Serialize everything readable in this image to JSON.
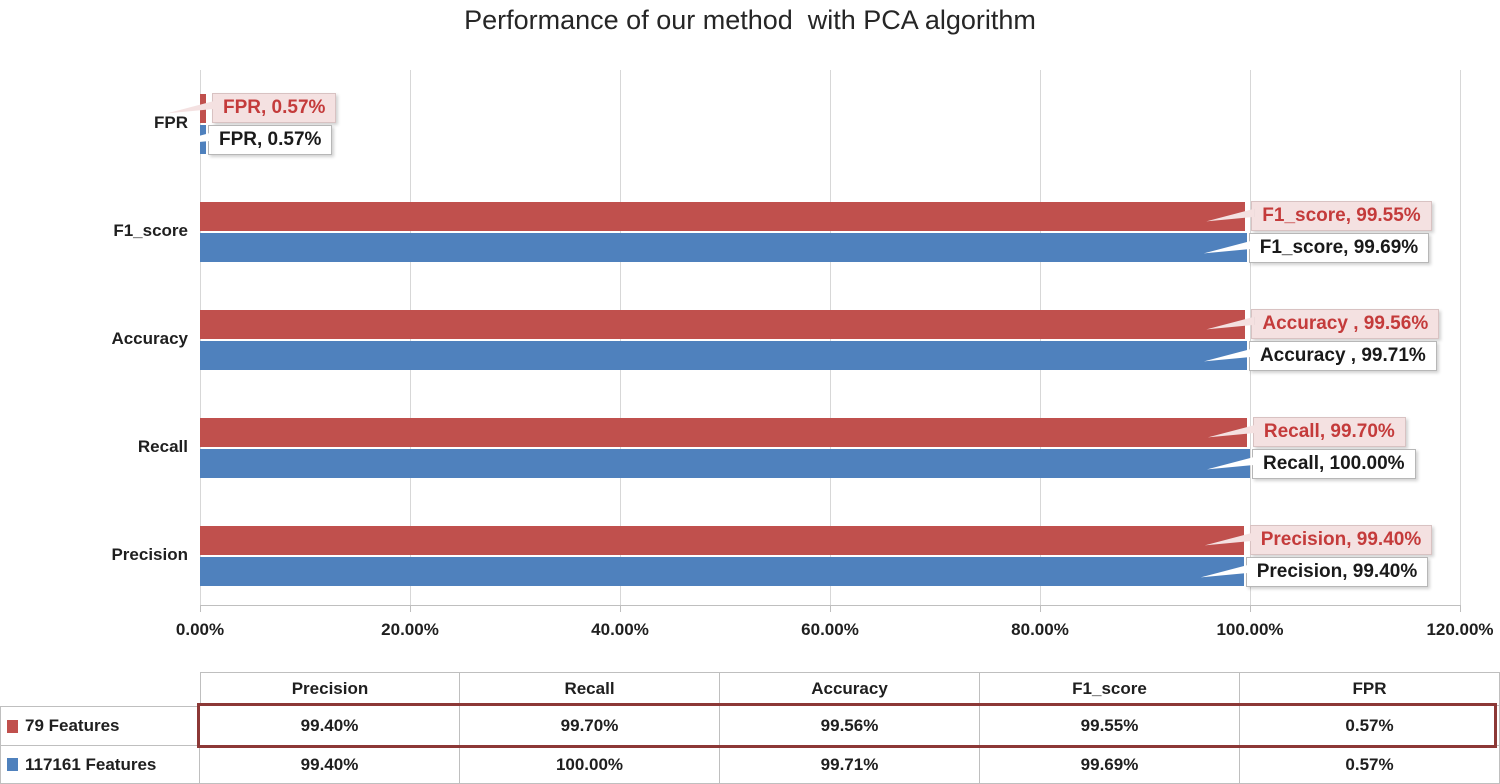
{
  "title": "Performance of our method  with PCA algorithm",
  "chart_data": {
    "type": "bar",
    "orientation": "horizontal",
    "title": "Performance of our method  with PCA algorithm",
    "categories": [
      "Precision",
      "Recall",
      "Accuracy",
      "F1_score",
      "FPR"
    ],
    "series": [
      {
        "name": "79 Features",
        "color": "#c0504d",
        "values": [
          99.4,
          99.7,
          99.56,
          99.55,
          0.57
        ],
        "labels": [
          "Precision, 99.40%",
          "Recall, 99.70%",
          "Accuracy , 99.56%",
          "F1_score, 99.55%",
          "FPR, 0.57%"
        ]
      },
      {
        "name": "117161 Features",
        "color": "#4f81bd",
        "values": [
          99.4,
          100.0,
          99.71,
          99.69,
          0.57
        ],
        "labels": [
          "Precision, 99.40%",
          "Recall, 100.00%",
          "Accuracy , 99.71%",
          "F1_score, 99.69%",
          "FPR, 0.57%"
        ]
      }
    ],
    "xlim": [
      0,
      120
    ],
    "x_ticks": [
      "0.00%",
      "20.00%",
      "40.00%",
      "60.00%",
      "80.00%",
      "100.00%",
      "120.00%"
    ],
    "grid": "vertical",
    "legend_position": "bottom-table"
  },
  "table": {
    "columns": [
      "Precision",
      "Recall",
      "Accuracy",
      "F1_score",
      "FPR"
    ],
    "rows": [
      {
        "label": "79 Features",
        "marker_color": "#c0504d",
        "values": [
          "99.40%",
          "99.70%",
          "99.56%",
          "99.55%",
          "0.57%"
        ],
        "highlighted": true
      },
      {
        "label": "117161 Features",
        "marker_color": "#4f81bd",
        "values": [
          "99.40%",
          "100.00%",
          "99.71%",
          "99.69%",
          "0.57%"
        ],
        "highlighted": false
      }
    ]
  },
  "colors": {
    "series1": "#c0504d",
    "series2": "#4f81bd",
    "callout_red_bg": "#f4e1e1",
    "callout_red_text": "#c43b3b",
    "callout_white_bg": "#ffffff",
    "gridline": "#d7d7d7",
    "highlight_border": "#8c3836"
  }
}
